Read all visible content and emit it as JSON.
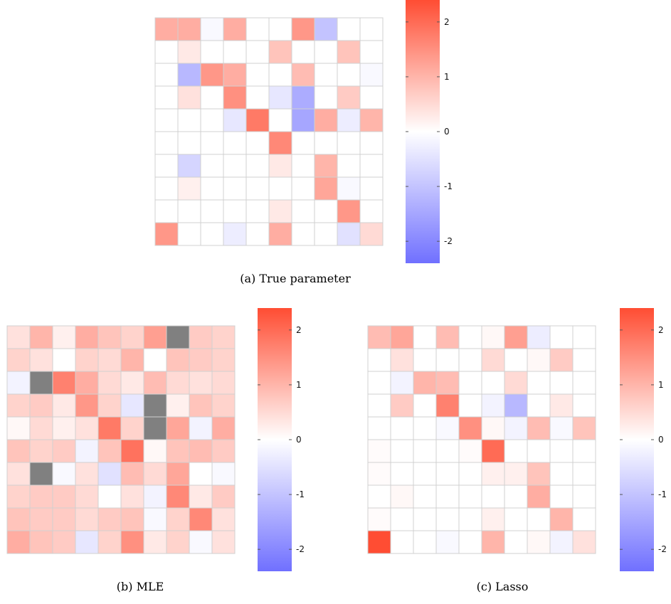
{
  "colorbar": {
    "ticks": [
      2,
      1,
      0,
      -1,
      -2
    ],
    "tick_labels": [
      "2",
      "1",
      "0",
      "-1",
      "-2"
    ],
    "range": [
      -2.4,
      2.4
    ],
    "colors": {
      "positive": "#ff4d33",
      "zero": "#ffffff",
      "negative": "#7070ff",
      "missing": "#808080"
    }
  },
  "chart_data": [
    {
      "type": "heatmap",
      "caption": "(a) True parameter",
      "rows": 10,
      "cols": 10,
      "values": [
        [
          1.1,
          1.1,
          -0.1,
          1.1,
          0,
          0,
          1.4,
          -1.0,
          0,
          0
        ],
        [
          0,
          0.3,
          0,
          0,
          0,
          0.8,
          0,
          0,
          0.8,
          0
        ],
        [
          0,
          -1.2,
          1.4,
          1.1,
          0,
          0,
          0.9,
          0,
          0,
          -0.1
        ],
        [
          0,
          0.4,
          0,
          1.5,
          0,
          -0.4,
          -1.4,
          0,
          0.7,
          0
        ],
        [
          0,
          0,
          0,
          -0.4,
          1.8,
          0,
          -1.5,
          1.1,
          -0.3,
          1.0
        ],
        [
          0,
          0,
          0,
          0,
          0,
          1.6,
          0,
          0,
          0,
          0
        ],
        [
          0,
          -0.7,
          0,
          0,
          0,
          0.3,
          0,
          1.0,
          0,
          0
        ],
        [
          0,
          0.2,
          0,
          0,
          0,
          0,
          0,
          1.2,
          -0.1,
          0
        ],
        [
          0,
          0,
          0,
          0,
          0,
          0.3,
          0,
          0,
          1.4,
          0
        ],
        [
          1.4,
          0,
          0,
          -0.3,
          0,
          1.1,
          0,
          0,
          -0.5,
          0.5
        ]
      ]
    },
    {
      "type": "heatmap",
      "caption": "(b) MLE",
      "rows": 10,
      "cols": 10,
      "values": [
        [
          0.4,
          1.0,
          0.2,
          1.1,
          0.8,
          0.6,
          1.3,
          null,
          0.7,
          0.6
        ],
        [
          0.6,
          0.4,
          0.0,
          0.6,
          0.5,
          1.0,
          0.0,
          0.8,
          0.7,
          0.6
        ],
        [
          -0.2,
          null,
          1.7,
          1.1,
          0.5,
          0.3,
          0.9,
          0.5,
          0.4,
          0.5
        ],
        [
          0.6,
          0.7,
          0.3,
          1.4,
          0.6,
          -0.4,
          null,
          0.2,
          0.8,
          0.6
        ],
        [
          0.1,
          0.5,
          0.2,
          0.4,
          1.8,
          0.6,
          null,
          1.2,
          -0.2,
          1.1
        ],
        [
          0.8,
          0.6,
          0.7,
          -0.2,
          0.8,
          1.9,
          0.1,
          0.8,
          0.9,
          0.7
        ],
        [
          0.4,
          null,
          -0.1,
          0.4,
          -0.5,
          0.9,
          0.5,
          1.2,
          0.0,
          -0.1
        ],
        [
          0.6,
          0.7,
          0.7,
          0.5,
          0.0,
          0.4,
          -0.2,
          1.6,
          0.3,
          0.7
        ],
        [
          0.8,
          0.7,
          0.7,
          0.5,
          0.7,
          0.8,
          -0.1,
          0.6,
          1.6,
          0.4
        ],
        [
          1.1,
          0.8,
          0.7,
          -0.4,
          0.6,
          1.5,
          0.3,
          0.6,
          -0.1,
          0.4
        ]
      ]
    },
    {
      "type": "heatmap",
      "caption": "(c) Lasso",
      "rows": 10,
      "cols": 10,
      "values": [
        [
          0.9,
          1.2,
          0,
          0.9,
          0,
          0.1,
          1.3,
          -0.3,
          0,
          0
        ],
        [
          0,
          0.4,
          0,
          0,
          0,
          0.5,
          0,
          0.1,
          0.7,
          0
        ],
        [
          0,
          -0.2,
          1.0,
          0.9,
          0,
          0,
          0.5,
          0,
          0,
          0
        ],
        [
          0,
          0.7,
          0,
          1.7,
          0,
          -0.2,
          -1.2,
          0,
          0.3,
          0
        ],
        [
          0,
          0,
          0,
          -0.1,
          1.5,
          0.1,
          -0.2,
          0.9,
          -0.1,
          0.8
        ],
        [
          0.05,
          0,
          0,
          0,
          0.05,
          2.0,
          0,
          0,
          0,
          0
        ],
        [
          0.05,
          0,
          0,
          0,
          0,
          0.2,
          0.2,
          0.8,
          0,
          0
        ],
        [
          0,
          0.1,
          0,
          0,
          0,
          0,
          0,
          1.1,
          0,
          0
        ],
        [
          0.05,
          0,
          0,
          0,
          0,
          0.2,
          0,
          0,
          1.0,
          0
        ],
        [
          2.4,
          0,
          0,
          -0.1,
          0,
          1.0,
          0,
          0.1,
          -0.2,
          0.4
        ]
      ]
    }
  ]
}
